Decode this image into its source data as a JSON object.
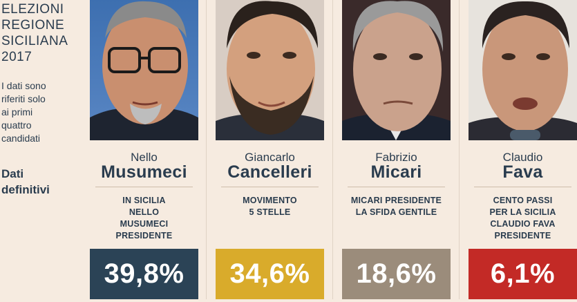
{
  "header": {
    "title": "ELEZIONI\nREGIONE\nSICILIANA\n2017",
    "note": "I dati sono\nriferiti solo\nai primi\nquattro\ncandidati",
    "status": "Dati\ndefinitivi"
  },
  "candidates": [
    {
      "first_name": "Nello",
      "last_name": "Musumeci",
      "list": "IN SICILIA\nNELLO\nMUSUMECI\nPRESIDENTE",
      "percent": "39,8%",
      "percent_value": 39.8,
      "color": "#2b4356"
    },
    {
      "first_name": "Giancarlo",
      "last_name": "Cancelleri",
      "list": "MOVIMENTO\n5 STELLE",
      "percent": "34,6%",
      "percent_value": 34.6,
      "color": "#d9ab2b"
    },
    {
      "first_name": "Fabrizio",
      "last_name": "Micari",
      "list": "MICARI PRESIDENTE\nLA SFIDA GENTILE",
      "percent": "18,6%",
      "percent_value": 18.6,
      "color": "#9b8c7b"
    },
    {
      "first_name": "Claudio",
      "last_name": "Fava",
      "list": "CENTO PASSI\nPER LA SICILIA\nCLAUDIO FAVA\nPRESIDENTE",
      "percent": "6,1%",
      "percent_value": 6.1,
      "color": "#c32a26"
    }
  ]
}
